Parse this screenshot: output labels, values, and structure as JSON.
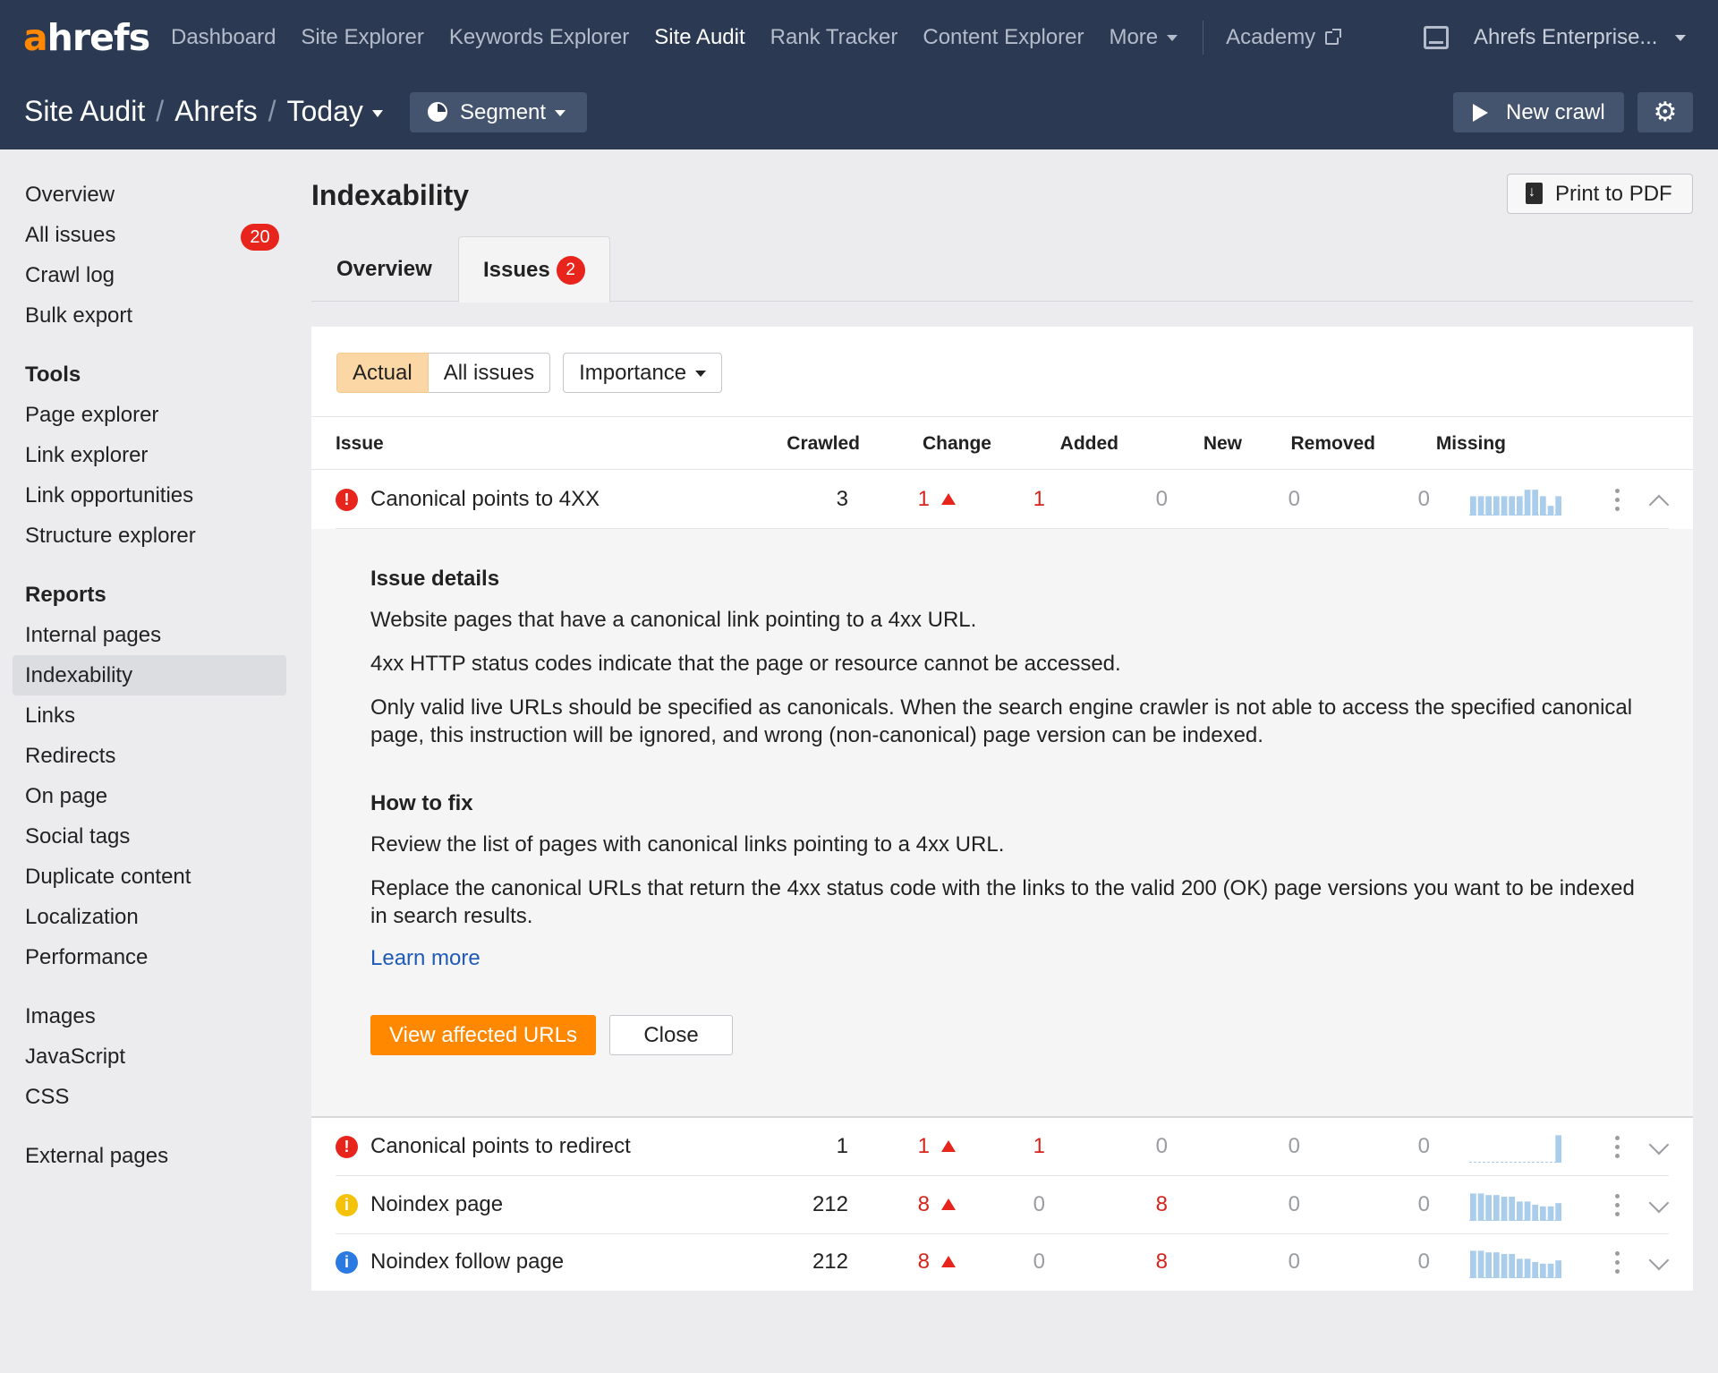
{
  "brand": {
    "logo_a": "a",
    "logo_rest": "hrefs",
    "accent": "#ff8800"
  },
  "topnav": {
    "items": [
      "Dashboard",
      "Site Explorer",
      "Keywords Explorer",
      "Site Audit",
      "Rank Tracker",
      "Content Explorer",
      "More"
    ],
    "active": "Site Audit",
    "academy": "Academy",
    "account": "Ahrefs Enterprise..."
  },
  "breadcrumb": {
    "p1": "Site Audit",
    "p2": "Ahrefs",
    "p3": "Today",
    "sep": "/"
  },
  "toolbar": {
    "segment": "Segment",
    "new_crawl": "New crawl",
    "print": "Print to PDF"
  },
  "sidebar": {
    "top": [
      {
        "label": "Overview"
      },
      {
        "label": "All issues",
        "badge": "20"
      },
      {
        "label": "Crawl log"
      },
      {
        "label": "Bulk export"
      }
    ],
    "tools_head": "Tools",
    "tools": [
      "Page explorer",
      "Link explorer",
      "Link opportunities",
      "Structure explorer"
    ],
    "reports_head": "Reports",
    "reports": [
      "Internal pages",
      "Indexability",
      "Links",
      "Redirects",
      "On page",
      "Social tags",
      "Duplicate content",
      "Localization",
      "Performance"
    ],
    "assets": [
      "Images",
      "JavaScript",
      "CSS"
    ],
    "external": "External pages",
    "active": "Indexability"
  },
  "page": {
    "title": "Indexability",
    "tabs": {
      "overview": "Overview",
      "issues": "Issues",
      "issues_count": "2"
    }
  },
  "filters": {
    "actual": "Actual",
    "all": "All issues",
    "importance": "Importance"
  },
  "table": {
    "headers": [
      "Issue",
      "Crawled",
      "Change",
      "Added",
      "New",
      "Removed",
      "Missing"
    ],
    "rows": [
      {
        "severity": "error",
        "name": "Canonical points to 4XX",
        "crawled": "3",
        "change": "1",
        "added": "1",
        "new": "0",
        "removed": "0",
        "missing": "0",
        "spark": [
          0.6,
          0.6,
          0.6,
          0.6,
          0.6,
          0.6,
          0.6,
          0.8,
          0.8,
          0.6,
          0.3,
          0.6
        ]
      },
      {
        "severity": "error",
        "name": "Canonical points to redirect",
        "crawled": "1",
        "change": "1",
        "added": "1",
        "new": "0",
        "removed": "0",
        "missing": "0",
        "spark": [
          0,
          0,
          0,
          0,
          0,
          0,
          0,
          0,
          0,
          0,
          0,
          0.85
        ]
      },
      {
        "severity": "warning",
        "name": "Noindex page",
        "crawled": "212",
        "change": "8",
        "added": "0",
        "new": "8",
        "removed": "0",
        "missing": "0",
        "spark": [
          0.85,
          0.85,
          0.8,
          0.8,
          0.75,
          0.75,
          0.6,
          0.6,
          0.5,
          0.45,
          0.45,
          0.55
        ]
      },
      {
        "severity": "info",
        "name": "Noindex follow page",
        "crawled": "212",
        "change": "8",
        "added": "0",
        "new": "8",
        "removed": "0",
        "missing": "0",
        "spark": [
          0.85,
          0.85,
          0.8,
          0.8,
          0.75,
          0.75,
          0.6,
          0.6,
          0.5,
          0.45,
          0.45,
          0.55
        ]
      }
    ]
  },
  "details": {
    "issue_head": "Issue details",
    "p1": "Website pages that have a canonical link pointing to a 4xx URL.",
    "p2": "4xx HTTP status codes indicate that the page or resource cannot be accessed.",
    "p3": "Only valid live URLs should be specified as canonicals. When the search engine crawler is not able to access the specified canonical page, this instruction will be ignored, and wrong (non-canonical) page version can be indexed.",
    "fix_head": "How to fix",
    "f1": "Review the list of pages with canonical links pointing to a 4xx URL.",
    "f2": "Replace the canonical URLs that return the 4xx status code with the links to the valid 200 (OK) page versions you want to be indexed in search results.",
    "learn_more": "Learn more",
    "view_btn": "View affected URLs",
    "close_btn": "Close"
  }
}
